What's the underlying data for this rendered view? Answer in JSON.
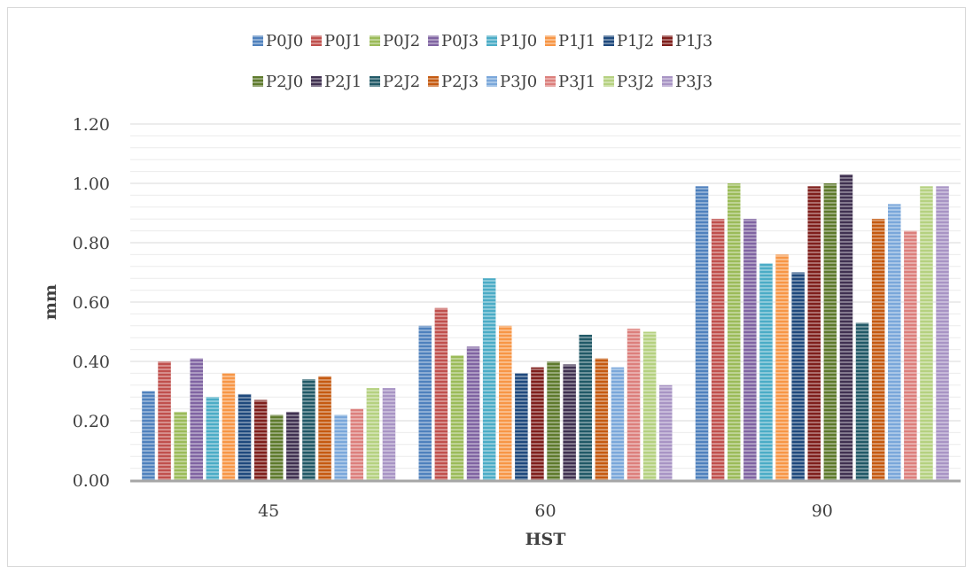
{
  "chart_data": {
    "type": "bar",
    "title": "",
    "xlabel": "HST",
    "ylabel": "mm",
    "ylim": [
      0,
      1.2
    ],
    "yticks": [
      "0.00",
      "0.20",
      "0.40",
      "0.60",
      "0.80",
      "1.00",
      "1.20"
    ],
    "grid": true,
    "legend_position": "top",
    "categories": [
      "45",
      "60",
      "90"
    ],
    "series": [
      {
        "name": "P0J0",
        "color": "#4f81bd",
        "values": [
          0.3,
          0.52,
          0.99
        ]
      },
      {
        "name": "P0J1",
        "color": "#c0504d",
        "values": [
          0.4,
          0.58,
          0.88
        ]
      },
      {
        "name": "P0J2",
        "color": "#9bbb59",
        "values": [
          0.23,
          0.42,
          1.0
        ]
      },
      {
        "name": "P0J3",
        "color": "#8064a2",
        "values": [
          0.41,
          0.45,
          0.88
        ]
      },
      {
        "name": "P1J0",
        "color": "#4bacc6",
        "values": [
          0.28,
          0.68,
          0.73
        ]
      },
      {
        "name": "P1J1",
        "color": "#f79646",
        "values": [
          0.36,
          0.52,
          0.76
        ]
      },
      {
        "name": "P1J2",
        "color": "#1f497d",
        "values": [
          0.29,
          0.36,
          0.7
        ]
      },
      {
        "name": "P1J3",
        "color": "#7f1f1c",
        "values": [
          0.27,
          0.38,
          0.99
        ]
      },
      {
        "name": "P2J0",
        "color": "#5e7a2c",
        "values": [
          0.22,
          0.4,
          1.0
        ]
      },
      {
        "name": "P2J1",
        "color": "#403151",
        "values": [
          0.23,
          0.39,
          1.03
        ]
      },
      {
        "name": "P2J2",
        "color": "#215967",
        "values": [
          0.34,
          0.49,
          0.53
        ]
      },
      {
        "name": "P2J3",
        "color": "#c55a11",
        "values": [
          0.35,
          0.41,
          0.88
        ]
      },
      {
        "name": "P3J0",
        "color": "#7aa7da",
        "values": [
          0.22,
          0.38,
          0.93
        ]
      },
      {
        "name": "P3J1",
        "color": "#dc7f7c",
        "values": [
          0.24,
          0.51,
          0.84
        ]
      },
      {
        "name": "P3J2",
        "color": "#b5d180",
        "values": [
          0.31,
          0.5,
          0.99
        ]
      },
      {
        "name": "P3J3",
        "color": "#a894c4",
        "values": [
          0.31,
          0.32,
          0.99
        ]
      }
    ]
  }
}
